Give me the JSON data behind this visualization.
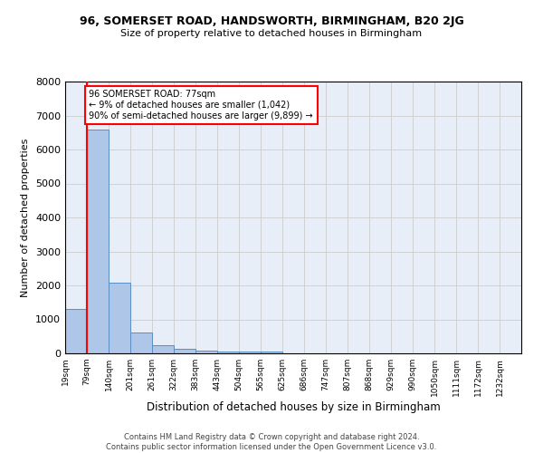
{
  "title_line1": "96, SOMERSET ROAD, HANDSWORTH, BIRMINGHAM, B20 2JG",
  "title_line2": "Size of property relative to detached houses in Birmingham",
  "xlabel": "Distribution of detached houses by size in Birmingham",
  "ylabel": "Number of detached properties",
  "bar_values": [
    1300,
    6580,
    2080,
    620,
    250,
    140,
    90,
    60,
    60,
    60,
    0,
    0,
    0,
    0,
    0,
    0,
    0,
    0,
    0,
    0
  ],
  "categories": [
    "19sqm",
    "79sqm",
    "140sqm",
    "201sqm",
    "261sqm",
    "322sqm",
    "383sqm",
    "443sqm",
    "504sqm",
    "565sqm",
    "625sqm",
    "686sqm",
    "747sqm",
    "807sqm",
    "868sqm",
    "929sqm",
    "990sqm",
    "1050sqm",
    "1111sqm",
    "1172sqm",
    "1232sqm"
  ],
  "bar_color": "#aec6e8",
  "bar_edge_color": "#5a8fc2",
  "grid_color": "#cccccc",
  "background_color": "#e8eef7",
  "annotation_text": "96 SOMERSET ROAD: 77sqm\n← 9% of detached houses are smaller (1,042)\n90% of semi-detached houses are larger (9,899) →",
  "annotation_box_color": "white",
  "annotation_box_edge_color": "red",
  "vline_x": 1,
  "vline_color": "red",
  "ylim": [
    0,
    8000
  ],
  "yticks": [
    0,
    1000,
    2000,
    3000,
    4000,
    5000,
    6000,
    7000,
    8000
  ],
  "footnote": "Contains HM Land Registry data © Crown copyright and database right 2024.\nContains public sector information licensed under the Open Government Licence v3.0."
}
